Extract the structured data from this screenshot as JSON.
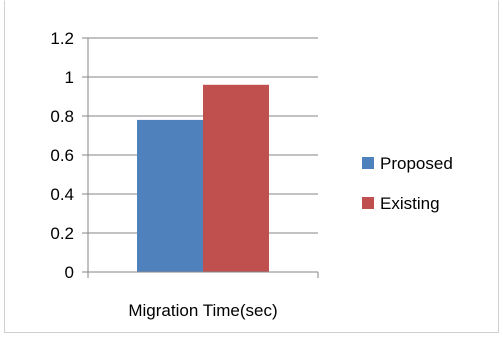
{
  "chart_data": {
    "type": "bar",
    "categories": [
      "Migration Time(sec)"
    ],
    "series": [
      {
        "name": "Proposed",
        "values": [
          0.78
        ],
        "color": "#4f81bd"
      },
      {
        "name": "Existing",
        "values": [
          0.96
        ],
        "color": "#c0504d"
      }
    ],
    "title": "",
    "xlabel": "",
    "ylabel": "",
    "ylim": [
      0,
      1.2
    ],
    "yticks": [
      0,
      0.2,
      0.4,
      0.6,
      0.8,
      1,
      1.2
    ],
    "ytick_labels": [
      "0",
      "0.2",
      "0.4",
      "0.6",
      "0.8",
      "1",
      "1.2"
    ],
    "grid": true,
    "legend_position": "right"
  }
}
